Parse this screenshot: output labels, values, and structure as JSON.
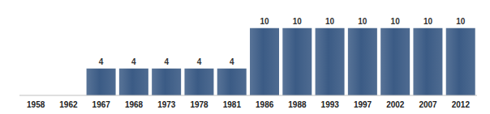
{
  "chart_data": {
    "type": "bar",
    "categories": [
      "1958",
      "1962",
      "1967",
      "1968",
      "1973",
      "1978",
      "1981",
      "1986",
      "1988",
      "1993",
      "1997",
      "2002",
      "2007",
      "2012"
    ],
    "values": [
      null,
      null,
      4,
      4,
      4,
      4,
      4,
      10,
      10,
      10,
      10,
      10,
      10,
      10
    ],
    "color": "#3b5b85",
    "ylim": [
      0,
      12
    ],
    "data_labels": true,
    "tick_labels": "x",
    "grid": false
  }
}
